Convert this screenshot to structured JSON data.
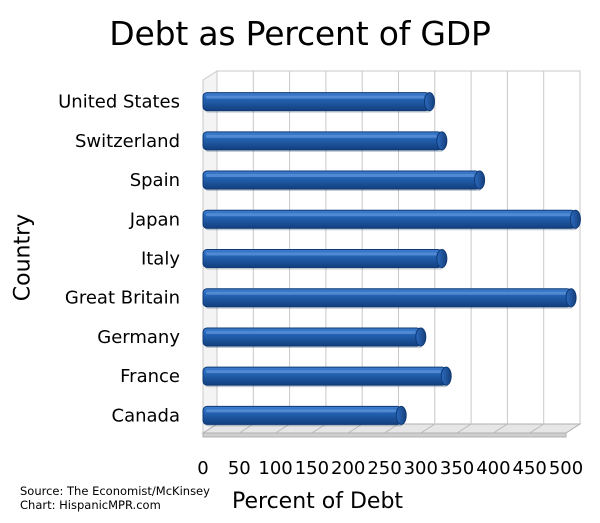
{
  "chart_data": {
    "type": "bar",
    "orientation": "horizontal",
    "title": "Debt as Percent of GDP",
    "xlabel": "Percent of Debt",
    "ylabel": "Country",
    "categories": [
      "United States",
      "Switzerland",
      "Spain",
      "Japan",
      "Italy",
      "Great Britain",
      "Germany",
      "France",
      "Canada"
    ],
    "values": [
      312,
      329,
      381,
      513,
      329,
      507,
      300,
      335,
      273
    ],
    "xlim": [
      0,
      500
    ],
    "xticks": [
      "0",
      "50",
      "100",
      "150",
      "200",
      "250",
      "300",
      "350",
      "400",
      "450",
      "500"
    ],
    "grid": "vertical",
    "legend": "none",
    "bar_color": "#1f5aa6",
    "source_lines": [
      "Source: The Economist/McKinsey",
      "Chart: HispanicMPR.com"
    ]
  }
}
